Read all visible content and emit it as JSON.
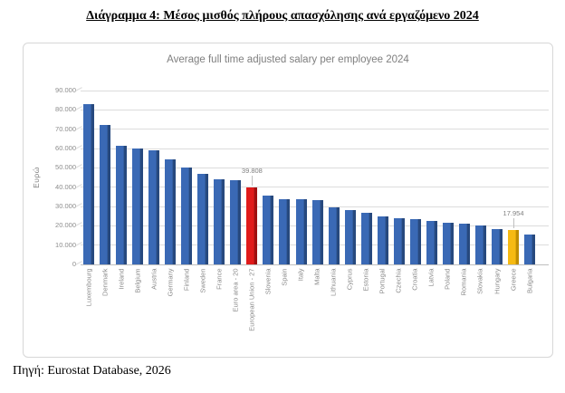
{
  "page": {
    "title": "Διάγραμμα 4: Μέσος μισθός πλήρους απασχόλησης ανά εργαζόμενο 2024",
    "source": "Πηγή: Eurostat Database, 2026"
  },
  "chart_data": {
    "type": "bar",
    "title": "Average full time adjusted salary per employee 2024",
    "xlabel": "",
    "ylabel": "Ευρώ",
    "ylim": [
      0,
      90000
    ],
    "ytick_step": 10000,
    "ytick_labels": [
      "0",
      "10.000",
      "20.000",
      "30.000",
      "40.000",
      "50.000",
      "60.000",
      "70.000",
      "80.000",
      "90.000"
    ],
    "grid": true,
    "legend": "none",
    "categories": [
      "Luxembourg",
      "Denmark",
      "Ireland",
      "Belgium",
      "Austria",
      "Germany",
      "Finland",
      "Sweden",
      "France",
      "Euro area - 20",
      "European Union - 27",
      "Slovenia",
      "Spain",
      "Italy",
      "Malta",
      "Lithuania",
      "Cyprus",
      "Estonia",
      "Portugal",
      "Czechia",
      "Croatia",
      "Latvia",
      "Poland",
      "Romania",
      "Slovakia",
      "Hungary",
      "Greece",
      "Bulgaria"
    ],
    "values": [
      83000,
      72000,
      61500,
      60000,
      59000,
      54500,
      50000,
      47000,
      44200,
      43800,
      39808,
      35500,
      33700,
      33700,
      33300,
      29400,
      27900,
      26700,
      25000,
      24100,
      23500,
      22400,
      21500,
      21000,
      20300,
      18300,
      17954,
      15300
    ],
    "highlights": [
      {
        "index": 10,
        "category": "European Union - 27",
        "label": "39.808",
        "face": "#e01b1b",
        "edge": "#9e1010"
      },
      {
        "index": 26,
        "category": "Greece",
        "label": "17.954",
        "face": "#f6ba13",
        "edge": "#bf8d00"
      }
    ],
    "colors": {
      "bar_face": "#3a69b5",
      "bar_edge": "#27497e",
      "gridline": "#dcdcdc",
      "axis": "#bfbfbf",
      "tick_text": "#8c8c8c",
      "title_text": "#7f7f7f"
    }
  }
}
